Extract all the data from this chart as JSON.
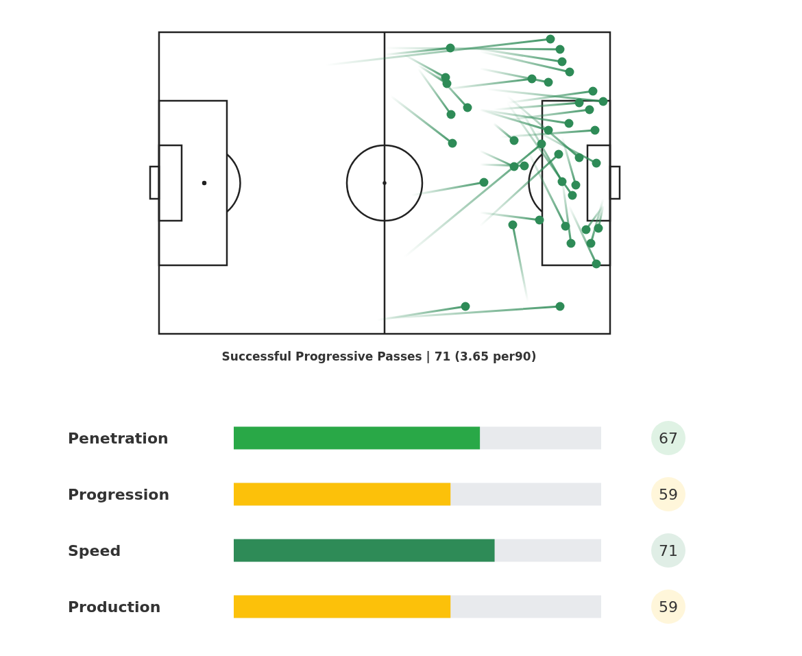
{
  "chart_data": [
    {
      "type": "other",
      "title": "Successful Progressive Passes | 71 (3.65 per90)"
    },
    {
      "type": "bar",
      "orientation": "horizontal",
      "categories": [
        "Penetration",
        "Progression",
        "Speed",
        "Production"
      ],
      "values": [
        67,
        59,
        71,
        59
      ],
      "colors": [
        "#29a847",
        "#fcc10a",
        "#2e8b57",
        "#fcc10a"
      ],
      "xlim": [
        0,
        100
      ],
      "data_labels": true,
      "tick_labels": "y"
    }
  ]
}
